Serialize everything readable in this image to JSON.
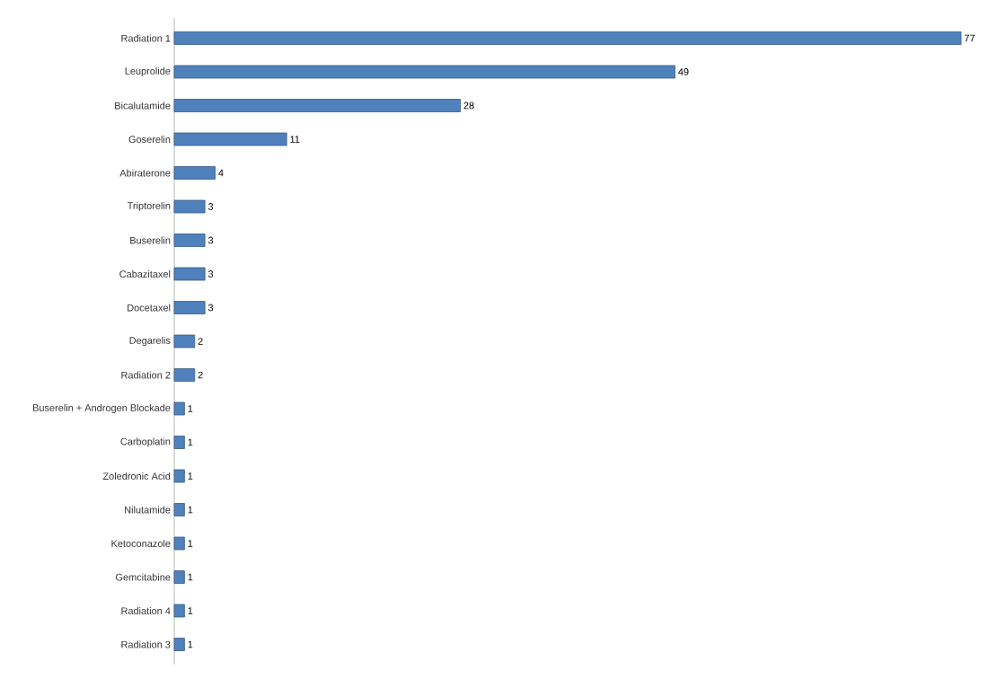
{
  "chart_data": {
    "type": "bar",
    "orientation": "horizontal",
    "categories": [
      "Radiation 1",
      "Leuprolide",
      "Bicalutamide",
      "Goserelin",
      "Abiraterone",
      "Triptorelin",
      "Buserelin",
      "Cabazitaxel",
      "Docetaxel",
      "Degarelis",
      "Radiation 2",
      "Buserelin + Androgen Blockade",
      "Carboplatin",
      "Zoledronic Acid",
      "Nilutamide",
      "Ketoconazole",
      "Gemcitabine",
      "Radiation 4",
      "Radiation 3"
    ],
    "values": [
      77,
      49,
      28,
      11,
      4,
      3,
      3,
      3,
      3,
      2,
      2,
      1,
      1,
      1,
      1,
      1,
      1,
      1,
      1
    ],
    "color": "#4f81bd",
    "data_labels": true
  }
}
